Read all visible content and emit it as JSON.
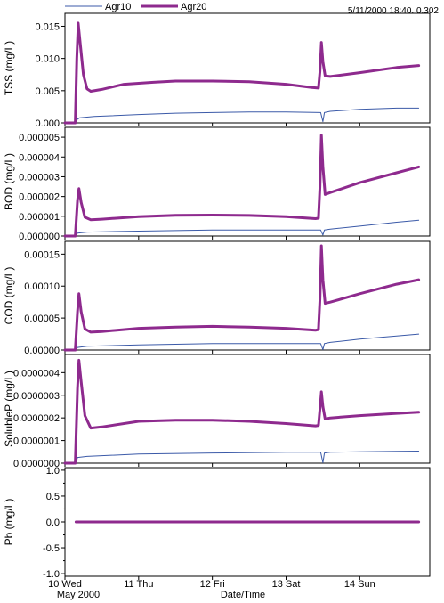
{
  "legend": {
    "items": [
      {
        "label": "Agr10",
        "color": "#3b5aa8",
        "width": 1
      },
      {
        "label": "Agr20",
        "color": "#8e2a8e",
        "width": 3
      }
    ]
  },
  "readout": "5/11/2000 18:40, 0.302",
  "xlabel": "Date/Time",
  "x_ticks": [
    "10 Wed",
    "11 Thu",
    "12 Fri",
    "13 Sat",
    "14 Sun"
  ],
  "x_sublabel": "May 2000",
  "chart_data": [
    {
      "type": "line",
      "ylabel": "TSS (mg/L)",
      "ylim": [
        0,
        0.017
      ],
      "ticks": [
        {
          "v": 0,
          "label": "0.000"
        },
        {
          "v": 0.005,
          "label": "0.005"
        },
        {
          "v": 0.01,
          "label": "0.010"
        },
        {
          "v": 0.015,
          "label": "0.015"
        }
      ],
      "x_range_days": [
        10.0,
        14.95
      ],
      "series": [
        {
          "name": "Agr10",
          "points": [
            [
              10.0,
              0
            ],
            [
              10.15,
              0
            ],
            [
              10.16,
              0.0005
            ],
            [
              10.2,
              0.0008
            ],
            [
              10.4,
              0.001
            ],
            [
              11.0,
              0.0013
            ],
            [
              11.5,
              0.0015
            ],
            [
              12.0,
              0.0016
            ],
            [
              12.5,
              0.0017
            ],
            [
              13.0,
              0.0017
            ],
            [
              13.47,
              0.0016
            ],
            [
              13.5,
              0.0002
            ],
            [
              13.52,
              0.0016
            ],
            [
              13.6,
              0.0018
            ],
            [
              14.0,
              0.0021
            ],
            [
              14.5,
              0.0023
            ],
            [
              14.8,
              0.0023
            ]
          ]
        },
        {
          "name": "Agr20",
          "points": [
            [
              10.0,
              0
            ],
            [
              10.14,
              0
            ],
            [
              10.16,
              0.01
            ],
            [
              10.18,
              0.0155
            ],
            [
              10.21,
              0.012
            ],
            [
              10.25,
              0.0075
            ],
            [
              10.3,
              0.0053
            ],
            [
              10.35,
              0.0049
            ],
            [
              10.5,
              0.0052
            ],
            [
              10.8,
              0.006
            ],
            [
              11.2,
              0.0063
            ],
            [
              11.5,
              0.0065
            ],
            [
              12.0,
              0.0065
            ],
            [
              12.5,
              0.0064
            ],
            [
              13.0,
              0.006
            ],
            [
              13.35,
              0.0055
            ],
            [
              13.44,
              0.0054
            ],
            [
              13.46,
              0.008
            ],
            [
              13.48,
              0.0125
            ],
            [
              13.5,
              0.0095
            ],
            [
              13.53,
              0.0073
            ],
            [
              13.6,
              0.0072
            ],
            [
              14.0,
              0.0078
            ],
            [
              14.5,
              0.0086
            ],
            [
              14.8,
              0.0089
            ]
          ]
        }
      ]
    },
    {
      "type": "line",
      "ylabel": "BOD (mg/L)",
      "ylim": [
        0,
        5.5e-06
      ],
      "ticks": [
        {
          "v": 0,
          "label": "0.000000"
        },
        {
          "v": 1e-06,
          "label": "0.000001"
        },
        {
          "v": 2e-06,
          "label": "0.000002"
        },
        {
          "v": 3e-06,
          "label": "0.000003"
        },
        {
          "v": 4e-06,
          "label": "0.000004"
        },
        {
          "v": 5e-06,
          "label": "0.000005"
        }
      ],
      "x_range_days": [
        10.0,
        14.95
      ],
      "series": [
        {
          "name": "Agr10",
          "points": [
            [
              10.0,
              0
            ],
            [
              10.15,
              0
            ],
            [
              10.17,
              1.5e-07
            ],
            [
              10.3,
              2e-07
            ],
            [
              11.0,
              2.5e-07
            ],
            [
              12.0,
              3e-07
            ],
            [
              13.0,
              3e-07
            ],
            [
              13.47,
              3e-07
            ],
            [
              13.5,
              5e-08
            ],
            [
              13.52,
              3e-07
            ],
            [
              13.6,
              3.5e-07
            ],
            [
              14.0,
              5e-07
            ],
            [
              14.5,
              7e-07
            ],
            [
              14.8,
              8e-07
            ]
          ]
        },
        {
          "name": "Agr20",
          "points": [
            [
              10.0,
              0
            ],
            [
              10.14,
              0
            ],
            [
              10.17,
              1.8e-06
            ],
            [
              10.19,
              2.4e-06
            ],
            [
              10.22,
              1.7e-06
            ],
            [
              10.27,
              9.5e-07
            ],
            [
              10.35,
              8.2e-07
            ],
            [
              10.5,
              8.5e-07
            ],
            [
              11.0,
              9.8e-07
            ],
            [
              11.5,
              1.05e-06
            ],
            [
              12.0,
              1.06e-06
            ],
            [
              12.5,
              1.04e-06
            ],
            [
              13.0,
              9.8e-07
            ],
            [
              13.4,
              8.8e-07
            ],
            [
              13.44,
              9e-07
            ],
            [
              13.46,
              2.5e-06
            ],
            [
              13.48,
              5.1e-06
            ],
            [
              13.5,
              3.5e-06
            ],
            [
              13.53,
              2.1e-06
            ],
            [
              13.6,
              2.2e-06
            ],
            [
              14.0,
              2.7e-06
            ],
            [
              14.5,
              3.2e-06
            ],
            [
              14.8,
              3.5e-06
            ]
          ]
        }
      ]
    },
    {
      "type": "line",
      "ylabel": "COD (mg/L)",
      "ylim": [
        0,
        0.00017
      ],
      "ticks": [
        {
          "v": 0,
          "label": "0.00000"
        },
        {
          "v": 5e-05,
          "label": "0.00005"
        },
        {
          "v": 0.0001,
          "label": "0.00010"
        },
        {
          "v": 0.00015,
          "label": "0.00015"
        }
      ],
      "x_range_days": [
        10.0,
        14.95
      ],
      "series": [
        {
          "name": "Agr10",
          "points": [
            [
              10.0,
              0
            ],
            [
              10.15,
              0
            ],
            [
              10.17,
              4e-06
            ],
            [
              10.3,
              6e-06
            ],
            [
              11.0,
              8e-06
            ],
            [
              12.0,
              1e-05
            ],
            [
              13.0,
              1e-05
            ],
            [
              13.47,
              1e-05
            ],
            [
              13.5,
              5e-07
            ],
            [
              13.52,
              1e-05
            ],
            [
              13.6,
              1.2e-05
            ],
            [
              14.0,
              1.7e-05
            ],
            [
              14.5,
              2.2e-05
            ],
            [
              14.8,
              2.5e-05
            ]
          ]
        },
        {
          "name": "Agr20",
          "points": [
            [
              10.0,
              0
            ],
            [
              10.14,
              0
            ],
            [
              10.17,
              6e-05
            ],
            [
              10.19,
              8.8e-05
            ],
            [
              10.22,
              6e-05
            ],
            [
              10.27,
              3.3e-05
            ],
            [
              10.35,
              2.8e-05
            ],
            [
              10.5,
              2.9e-05
            ],
            [
              11.0,
              3.4e-05
            ],
            [
              11.5,
              3.6e-05
            ],
            [
              12.0,
              3.7e-05
            ],
            [
              12.5,
              3.6e-05
            ],
            [
              13.0,
              3.4e-05
            ],
            [
              13.4,
              3.1e-05
            ],
            [
              13.44,
              3.2e-05
            ],
            [
              13.46,
              8e-05
            ],
            [
              13.48,
              0.000163
            ],
            [
              13.5,
              0.00011
            ],
            [
              13.53,
              7.3e-05
            ],
            [
              13.6,
              7.5e-05
            ],
            [
              14.0,
              8.8e-05
            ],
            [
              14.5,
              0.000103
            ],
            [
              14.8,
              0.00011
            ]
          ]
        }
      ]
    },
    {
      "type": "line",
      "ylabel": "SolubleP (mg/L)",
      "ylim": [
        0,
        4.8e-07
      ],
      "ticks": [
        {
          "v": 0,
          "label": "0.0000000"
        },
        {
          "v": 1e-07,
          "label": "0.0000001"
        },
        {
          "v": 2e-07,
          "label": "0.0000002"
        },
        {
          "v": 3e-07,
          "label": "0.0000003"
        },
        {
          "v": 4e-07,
          "label": "0.0000004"
        }
      ],
      "x_range_days": [
        10.0,
        14.95
      ],
      "series": [
        {
          "name": "Agr10",
          "points": [
            [
              10.0,
              0
            ],
            [
              10.15,
              0
            ],
            [
              10.17,
              2.5e-08
            ],
            [
              10.3,
              3e-08
            ],
            [
              11.0,
              4e-08
            ],
            [
              12.0,
              4.5e-08
            ],
            [
              13.0,
              4.8e-08
            ],
            [
              13.47,
              4.8e-08
            ],
            [
              13.5,
              2e-09
            ],
            [
              13.52,
              4.5e-08
            ],
            [
              13.6,
              4.8e-08
            ],
            [
              14.0,
              5e-08
            ],
            [
              14.5,
              5.2e-08
            ],
            [
              14.8,
              5.3e-08
            ]
          ]
        },
        {
          "name": "Agr20",
          "points": [
            [
              10.0,
              0
            ],
            [
              10.14,
              0
            ],
            [
              10.17,
              3.3e-07
            ],
            [
              10.19,
              4.55e-07
            ],
            [
              10.22,
              3.6e-07
            ],
            [
              10.27,
              2.1e-07
            ],
            [
              10.35,
              1.55e-07
            ],
            [
              10.5,
              1.6e-07
            ],
            [
              11.0,
              1.85e-07
            ],
            [
              11.5,
              1.9e-07
            ],
            [
              12.0,
              1.9e-07
            ],
            [
              12.5,
              1.85e-07
            ],
            [
              13.0,
              1.75e-07
            ],
            [
              13.4,
              1.65e-07
            ],
            [
              13.44,
              1.67e-07
            ],
            [
              13.46,
              2.4e-07
            ],
            [
              13.48,
              3.15e-07
            ],
            [
              13.5,
              2.5e-07
            ],
            [
              13.53,
              1.95e-07
            ],
            [
              13.6,
              2e-07
            ],
            [
              14.0,
              2.1e-07
            ],
            [
              14.5,
              2.2e-07
            ],
            [
              14.8,
              2.25e-07
            ]
          ]
        }
      ]
    },
    {
      "type": "line",
      "ylabel": "Pb (mg/L)",
      "ylim": [
        -1.05,
        1.05
      ],
      "ticks": [
        {
          "v": 1.0,
          "label": "1.0"
        },
        {
          "v": 0.5,
          "label": "0.5"
        },
        {
          "v": 0.0,
          "label": "0.0"
        },
        {
          "v": -0.5,
          "label": "-0.5"
        },
        {
          "v": -1.0,
          "label": "-1.0"
        }
      ],
      "minor_ticks": [
        0.75,
        0.25,
        -0.25,
        -0.75
      ],
      "x_range_days": [
        10.0,
        14.95
      ],
      "series": [
        {
          "name": "Agr10",
          "points": [
            [
              10.15,
              0
            ],
            [
              14.8,
              0
            ]
          ]
        },
        {
          "name": "Agr20",
          "points": [
            [
              10.15,
              0
            ],
            [
              14.8,
              0
            ]
          ]
        }
      ]
    }
  ]
}
